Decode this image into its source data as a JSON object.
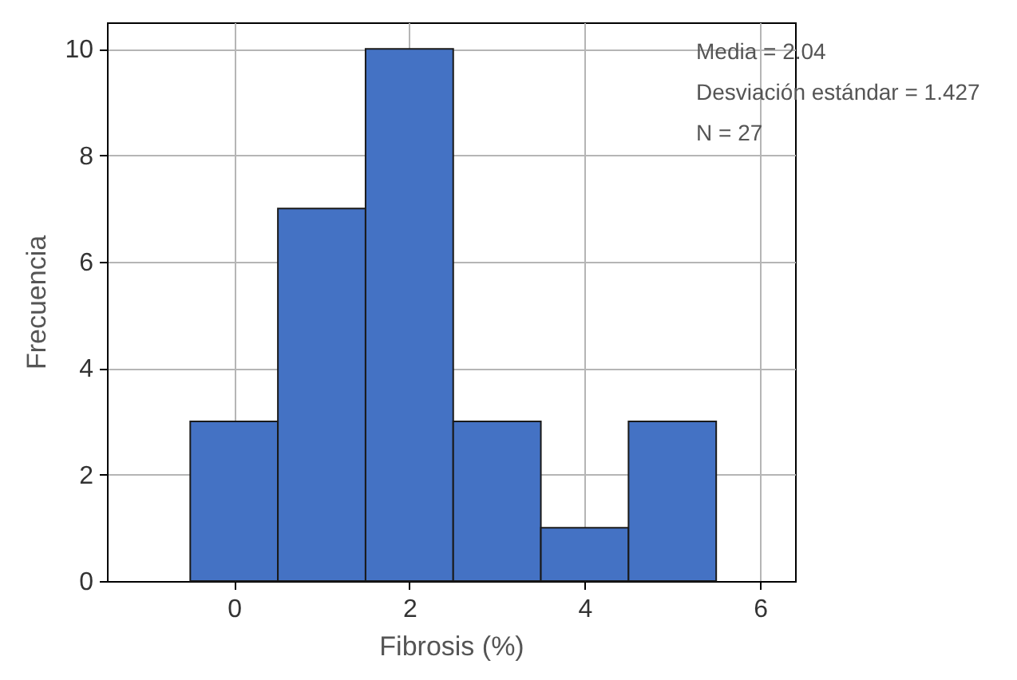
{
  "chart_data": {
    "type": "histogram",
    "xlabel": "Fibrosis (%)",
    "ylabel": "Frecuencia",
    "bins": [
      -0.5,
      0.5,
      1.5,
      2.5,
      3.5,
      4.5,
      5.5
    ],
    "values": [
      3,
      7,
      10,
      3,
      1,
      3
    ],
    "color": "#4472c4",
    "xlim": [
      -1.45,
      6.4
    ],
    "ylim": [
      0,
      10.5
    ],
    "xticks": [
      0,
      2,
      4,
      6
    ],
    "yticks": [
      0,
      2,
      4,
      6,
      8,
      10
    ],
    "grid": true,
    "annotations": [
      "Media = 2.04",
      "Desviación estándar = 1.427",
      "N = 27"
    ]
  }
}
